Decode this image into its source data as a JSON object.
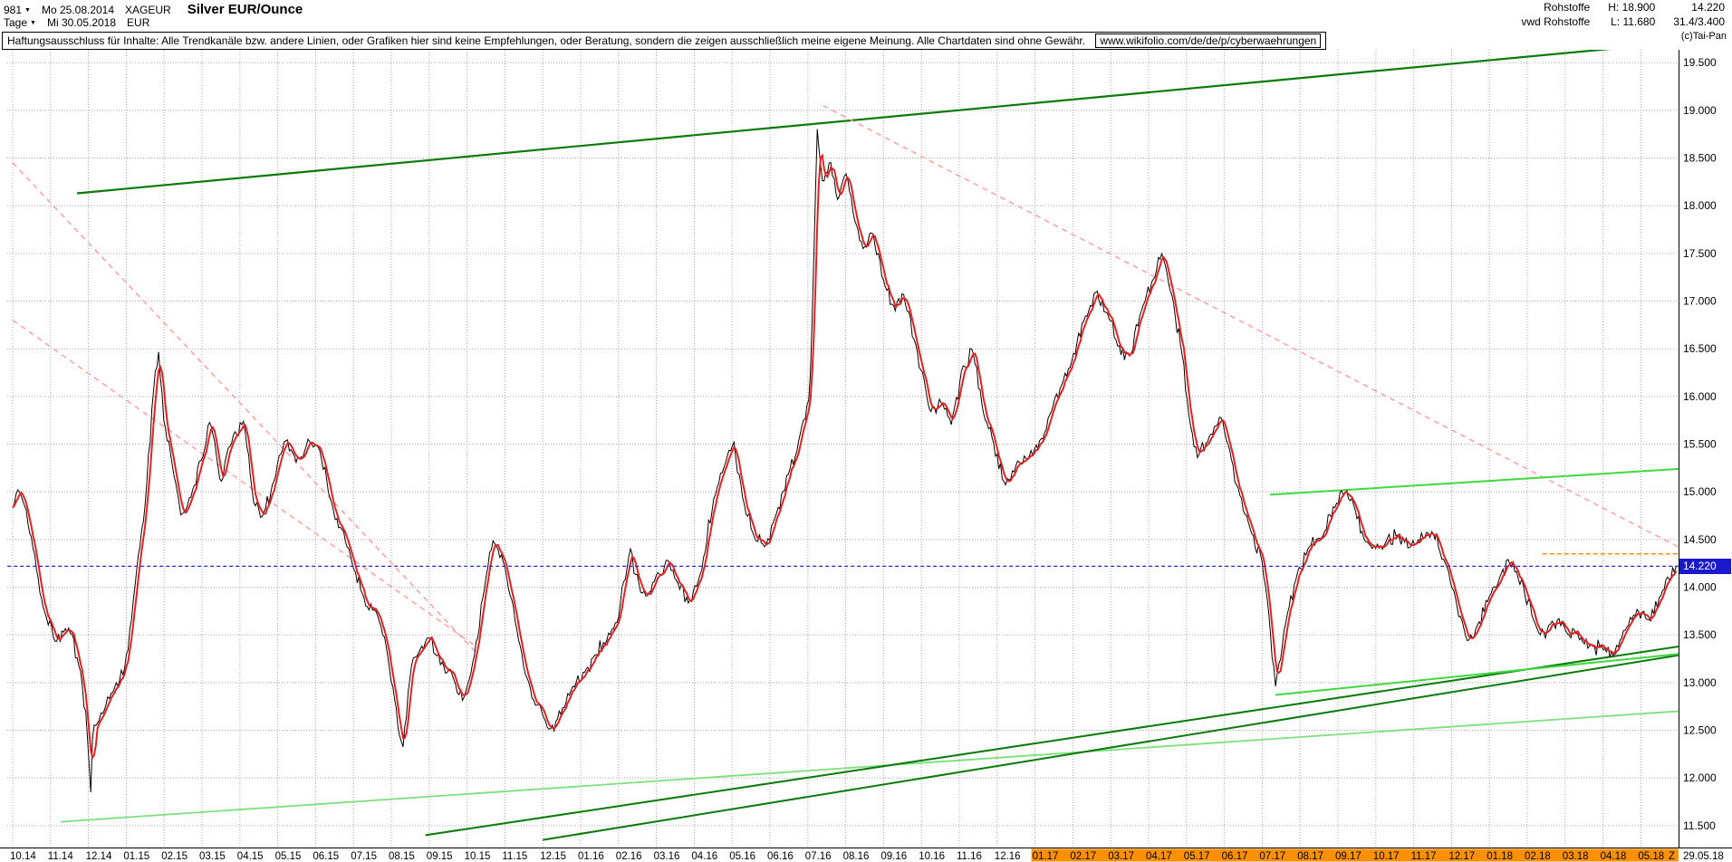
{
  "header": {
    "bars_count": "981",
    "start_day": "Mo 25.08.2014",
    "symbol": "XAGEUR",
    "title": "Silver EUR/Ounce",
    "period": "Tage",
    "end_day": "Mi 30.05.2018",
    "currency": "EUR",
    "group": "Rohstoffe",
    "feed": "vwd Rohstoffe",
    "high_label": "H: 18.900",
    "low_label": "L: 11.680",
    "last": "14.220",
    "extra": "31.4/3.400",
    "copyright": "(c)Tai-Pan"
  },
  "disclaimer": {
    "text": "Haftungsausschluss für Inhalte: Alle Trendkanäle bzw. andere Linien, oder Grafiken hier sind keine Empfehlungen, oder Beratung, sondern die zeigen ausschließlich meine eigene Meinung. Alle Chartdaten sind ohne Gewähr.",
    "link": "www.wikifolio.com/de/de/p/cyberwaehrungen"
  },
  "chart_data": {
    "type": "line",
    "title": "Silver EUR/Ounce",
    "instrument": "XAGEUR",
    "bar_count": 981,
    "high": 18.9,
    "low": 11.68,
    "last_price": 14.22,
    "last_label": "14.220",
    "ylim": [
      11.28,
      19.635
    ],
    "y_ticks": [
      "19.500",
      "19.000",
      "18.500",
      "18.000",
      "17.500",
      "17.000",
      "16.500",
      "16.000",
      "15.500",
      "15.000",
      "14.500",
      "14.000",
      "13.500",
      "13.000",
      "12.500",
      "12.000",
      "11.500"
    ],
    "x_labels": [
      "10.14",
      "11.14",
      "12.14",
      "01.15",
      "02.15",
      "03.15",
      "04.15",
      "05.15",
      "06.15",
      "07.15",
      "08.15",
      "09.15",
      "10.15",
      "11.15",
      "12.15",
      "01.16",
      "02.16",
      "03.16",
      "04.16",
      "05.16",
      "06.16",
      "07.16",
      "08.16",
      "09.16",
      "10.16",
      "11.16",
      "12.16",
      "01.17",
      "02.17",
      "03.17",
      "04.17",
      "05.17",
      "06.17",
      "07.17",
      "08.17",
      "09.17",
      "10.17",
      "11.17",
      "12.17",
      "01.18",
      "02.18",
      "03.18",
      "04.18",
      "05.18"
    ],
    "x_highlight_from": "01.17",
    "x_extra_labels": [
      "Z",
      "29.05.18"
    ],
    "anchors": [
      [
        0,
        14.85
      ],
      [
        0.15,
        15.05
      ],
      [
        0.5,
        14.5
      ],
      [
        0.8,
        13.8
      ],
      [
        1.1,
        13.45
      ],
      [
        1.5,
        13.55
      ],
      [
        1.8,
        13.1
      ],
      [
        2.0,
        12.35
      ],
      [
        2.05,
        11.68
      ],
      [
        2.12,
        12.55
      ],
      [
        2.4,
        12.7
      ],
      [
        2.7,
        12.95
      ],
      [
        2.95,
        13.1
      ],
      [
        3.2,
        13.9
      ],
      [
        3.5,
        14.9
      ],
      [
        3.75,
        16.2
      ],
      [
        3.85,
        16.5
      ],
      [
        4.0,
        15.7
      ],
      [
        4.2,
        15.3
      ],
      [
        4.45,
        14.75
      ],
      [
        4.7,
        14.95
      ],
      [
        5.0,
        15.35
      ],
      [
        5.2,
        15.75
      ],
      [
        5.5,
        15.1
      ],
      [
        5.8,
        15.55
      ],
      [
        6.1,
        15.75
      ],
      [
        6.35,
        14.9
      ],
      [
        6.6,
        14.75
      ],
      [
        6.9,
        15.1
      ],
      [
        7.2,
        15.55
      ],
      [
        7.5,
        15.3
      ],
      [
        7.8,
        15.55
      ],
      [
        8.1,
        15.45
      ],
      [
        8.4,
        14.9
      ],
      [
        8.7,
        14.6
      ],
      [
        9.0,
        14.2
      ],
      [
        9.3,
        13.85
      ],
      [
        9.6,
        13.75
      ],
      [
        9.9,
        13.3
      ],
      [
        10.15,
        12.65
      ],
      [
        10.3,
        12.3
      ],
      [
        10.5,
        13.1
      ],
      [
        10.7,
        13.3
      ],
      [
        11.0,
        13.5
      ],
      [
        11.3,
        13.2
      ],
      [
        11.6,
        13.1
      ],
      [
        11.9,
        12.8
      ],
      [
        12.2,
        13.3
      ],
      [
        12.5,
        14.1
      ],
      [
        12.7,
        14.5
      ],
      [
        13.0,
        14.2
      ],
      [
        13.3,
        13.6
      ],
      [
        13.6,
        13.0
      ],
      [
        13.9,
        12.75
      ],
      [
        14.2,
        12.5
      ],
      [
        14.5,
        12.7
      ],
      [
        14.8,
        12.95
      ],
      [
        15.1,
        13.1
      ],
      [
        15.4,
        13.3
      ],
      [
        15.7,
        13.45
      ],
      [
        16.0,
        13.7
      ],
      [
        16.3,
        14.4
      ],
      [
        16.5,
        14.1
      ],
      [
        16.7,
        13.9
      ],
      [
        17.0,
        14.1
      ],
      [
        17.3,
        14.3
      ],
      [
        17.6,
        14.0
      ],
      [
        17.9,
        13.85
      ],
      [
        18.2,
        14.2
      ],
      [
        18.5,
        14.9
      ],
      [
        18.8,
        15.3
      ],
      [
        19.05,
        15.5
      ],
      [
        19.3,
        14.9
      ],
      [
        19.6,
        14.5
      ],
      [
        19.9,
        14.45
      ],
      [
        20.2,
        14.8
      ],
      [
        20.5,
        15.2
      ],
      [
        20.8,
        15.6
      ],
      [
        21.05,
        16.0
      ],
      [
        21.15,
        17.3
      ],
      [
        21.25,
        18.85
      ],
      [
        21.4,
        18.2
      ],
      [
        21.6,
        18.45
      ],
      [
        21.8,
        18.0
      ],
      [
        22.0,
        18.35
      ],
      [
        22.2,
        17.9
      ],
      [
        22.45,
        17.55
      ],
      [
        22.7,
        17.75
      ],
      [
        23.0,
        17.2
      ],
      [
        23.3,
        16.9
      ],
      [
        23.5,
        17.1
      ],
      [
        23.8,
        16.6
      ],
      [
        24.05,
        16.2
      ],
      [
        24.2,
        15.85
      ],
      [
        24.5,
        15.95
      ],
      [
        24.8,
        15.7
      ],
      [
        25.1,
        16.3
      ],
      [
        25.35,
        16.5
      ],
      [
        25.6,
        15.9
      ],
      [
        25.9,
        15.5
      ],
      [
        26.2,
        15.05
      ],
      [
        26.5,
        15.3
      ],
      [
        26.8,
        15.35
      ],
      [
        27.1,
        15.5
      ],
      [
        27.4,
        15.8
      ],
      [
        27.7,
        16.1
      ],
      [
        28.0,
        16.4
      ],
      [
        28.3,
        16.8
      ],
      [
        28.6,
        17.1
      ],
      [
        28.9,
        16.9
      ],
      [
        29.2,
        16.5
      ],
      [
        29.5,
        16.4
      ],
      [
        29.8,
        16.9
      ],
      [
        30.1,
        17.2
      ],
      [
        30.35,
        17.5
      ],
      [
        30.6,
        17.1
      ],
      [
        30.9,
        16.4
      ],
      [
        31.1,
        15.7
      ],
      [
        31.3,
        15.35
      ],
      [
        31.6,
        15.6
      ],
      [
        31.9,
        15.8
      ],
      [
        32.1,
        15.5
      ],
      [
        32.4,
        15.0
      ],
      [
        32.7,
        14.6
      ],
      [
        33.0,
        14.25
      ],
      [
        33.2,
        13.6
      ],
      [
        33.35,
        12.95
      ],
      [
        33.6,
        13.6
      ],
      [
        33.9,
        14.1
      ],
      [
        34.2,
        14.4
      ],
      [
        34.5,
        14.5
      ],
      [
        34.8,
        14.75
      ],
      [
        35.1,
        15.0
      ],
      [
        35.4,
        14.9
      ],
      [
        35.7,
        14.5
      ],
      [
        36.0,
        14.4
      ],
      [
        36.3,
        14.5
      ],
      [
        36.6,
        14.55
      ],
      [
        36.9,
        14.4
      ],
      [
        37.2,
        14.55
      ],
      [
        37.5,
        14.6
      ],
      [
        37.8,
        14.3
      ],
      [
        38.1,
        13.9
      ],
      [
        38.4,
        13.45
      ],
      [
        38.7,
        13.6
      ],
      [
        39.0,
        13.9
      ],
      [
        39.3,
        14.15
      ],
      [
        39.6,
        14.25
      ],
      [
        39.9,
        14.0
      ],
      [
        40.2,
        13.6
      ],
      [
        40.5,
        13.5
      ],
      [
        40.8,
        13.65
      ],
      [
        41.1,
        13.5
      ],
      [
        41.4,
        13.45
      ],
      [
        41.7,
        13.4
      ],
      [
        42.0,
        13.35
      ],
      [
        42.3,
        13.3
      ],
      [
        42.6,
        13.55
      ],
      [
        42.9,
        13.75
      ],
      [
        43.2,
        13.65
      ],
      [
        43.5,
        13.9
      ],
      [
        43.75,
        14.1
      ],
      [
        43.93,
        14.22
      ]
    ],
    "trendlines": [
      {
        "name": "channel-top",
        "color": "#0a7a0a",
        "style": "solid",
        "width": 2.2,
        "from": [
          1.7,
          18.13
        ],
        "to": [
          44.2,
          19.72
        ]
      },
      {
        "name": "downtrend-2014",
        "color": "#ffa0a0",
        "style": "dashed",
        "width": 1.5,
        "from": [
          0,
          18.45
        ],
        "to": [
          12.3,
          13.29
        ]
      },
      {
        "name": "downtrend-2015",
        "color": "#ffa0a0",
        "style": "dashed",
        "width": 1.5,
        "from": [
          0,
          16.8
        ],
        "to": [
          12.2,
          13.39
        ]
      },
      {
        "name": "downtrend-2016",
        "color": "#ffa0a0",
        "style": "dashed",
        "width": 1.5,
        "from": [
          21.4,
          19.05
        ],
        "to": [
          44.0,
          14.42
        ]
      },
      {
        "name": "support-long-light",
        "color": "#7de07d",
        "style": "solid",
        "width": 1.8,
        "from": [
          1.27,
          11.54
        ],
        "to": [
          44.0,
          12.7
        ]
      },
      {
        "name": "uptrend-dark-1",
        "color": "#0a7a0a",
        "style": "solid",
        "width": 2,
        "from": [
          10.9,
          11.4
        ],
        "to": [
          44.2,
          13.39
        ]
      },
      {
        "name": "uptrend-dark-2",
        "color": "#0a7a0a",
        "style": "solid",
        "width": 2,
        "from": [
          14.0,
          11.35
        ],
        "to": [
          44.2,
          13.3
        ]
      },
      {
        "name": "support-2018-light",
        "color": "#3fd83f",
        "style": "solid",
        "width": 2,
        "from": [
          33.35,
          12.87
        ],
        "to": [
          44.0,
          13.3
        ]
      },
      {
        "name": "resistance-15-light",
        "color": "#3fd83f",
        "style": "solid",
        "width": 2,
        "from": [
          33.2,
          14.97
        ],
        "to": [
          44.0,
          15.24
        ]
      }
    ],
    "hlines": [
      {
        "name": "last-price",
        "color": "#2525e6",
        "price": 14.22,
        "from": -0.14,
        "to": 44.0,
        "dash": "4 3",
        "width": 1.3
      },
      {
        "name": "orange-level",
        "color": "#ff8a00",
        "price": 14.35,
        "from": 40.4,
        "to": 44.0,
        "dash": "5 3",
        "width": 1.4
      }
    ],
    "colors": {
      "grid": "#a8a8a8",
      "price": "#000000",
      "signal": "#e62020",
      "tag_bg": "#1a1acc",
      "x_highlight": "#ff9100",
      "axis": "#000000"
    }
  }
}
